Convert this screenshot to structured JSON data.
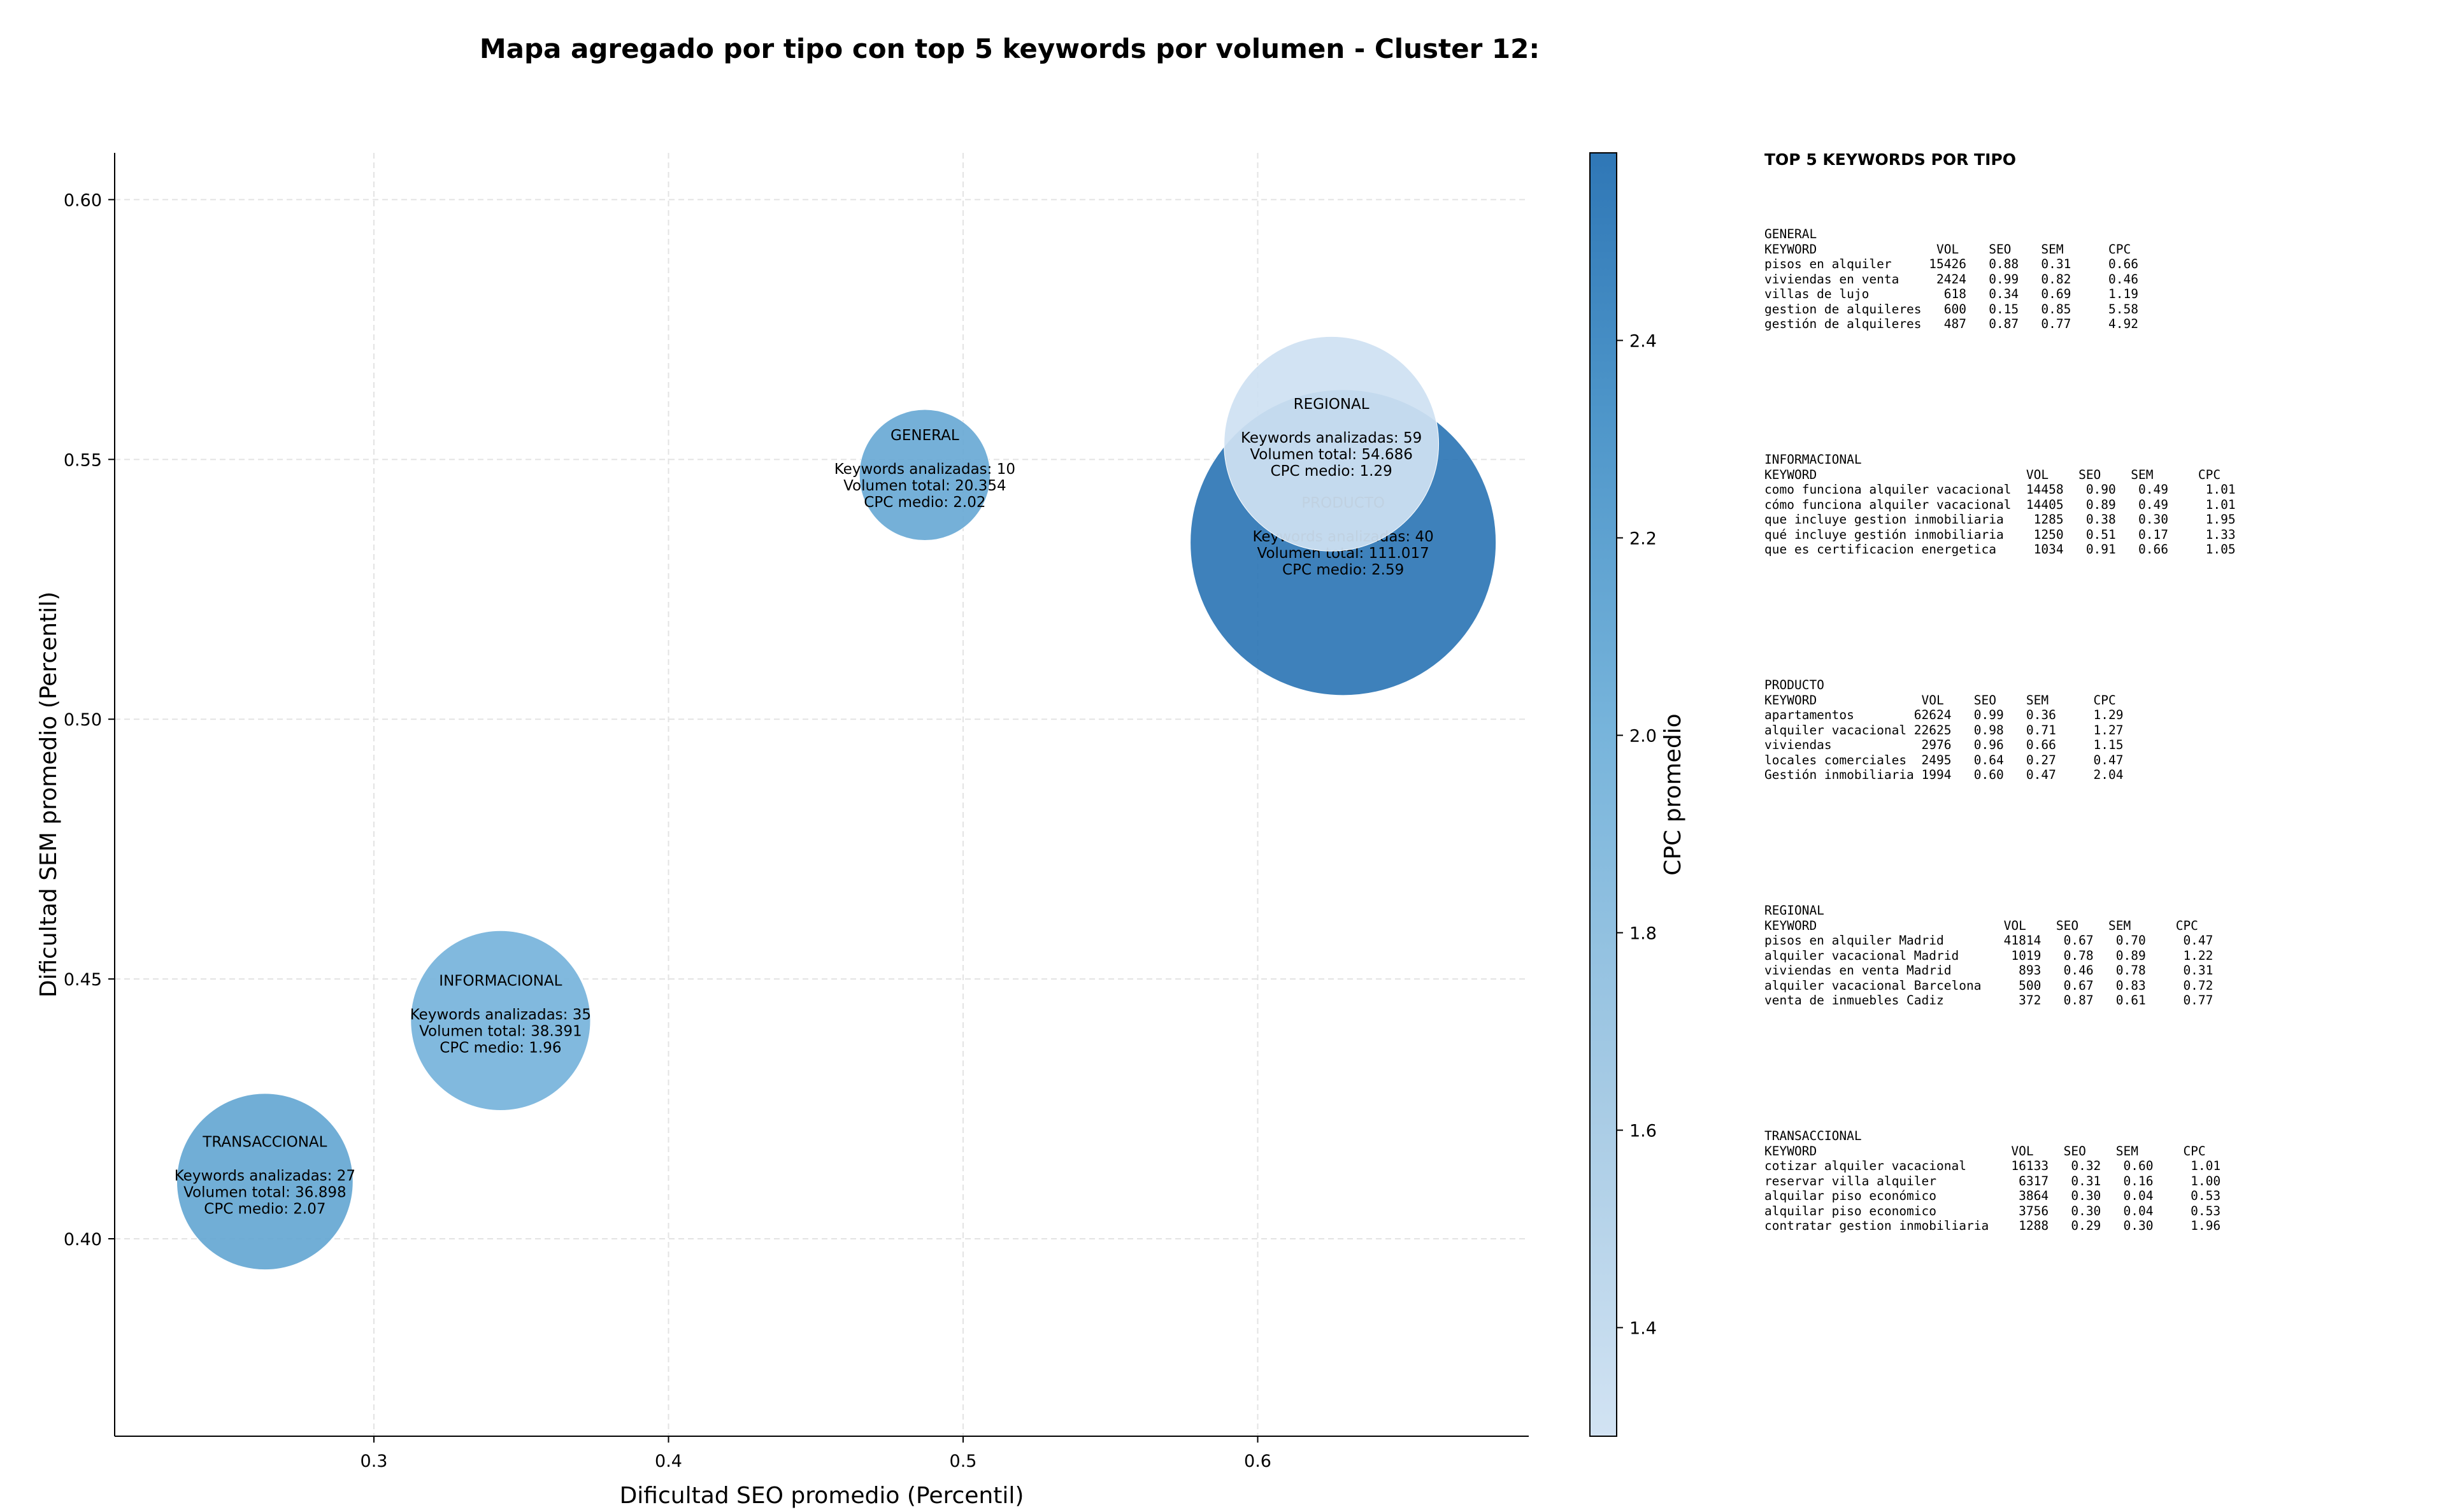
{
  "title": "Mapa agregado por tipo con top 5 keywords por volumen - Cluster 12:",
  "chart_data": {
    "type": "scatter",
    "title": "Mapa agregado por tipo con top 5 keywords por volumen - Cluster 12:",
    "xlabel": "Dificultad SEO promedio (Percentil)",
    "ylabel": "Dificultad SEM promedio (Percentil)",
    "xlim": [
      0.212,
      0.692
    ],
    "ylim": [
      0.362,
      0.609
    ],
    "xticks": [
      "0.3",
      "0.4",
      "0.5",
      "0.6"
    ],
    "yticks": [
      "0.40",
      "0.45",
      "0.50",
      "0.55",
      "0.60"
    ],
    "grid": true,
    "colorbar": {
      "label": "CPC promedio",
      "range": [
        1.29,
        2.59
      ],
      "ticks": [
        "1.4",
        "1.6",
        "1.8",
        "2.0",
        "2.2",
        "2.4"
      ]
    },
    "bubbles": [
      {
        "name": "GENERAL",
        "x": 0.487,
        "y": 0.547,
        "keywords_label": "Keywords analizadas: 10",
        "volume_label": "Volumen total: 20.354",
        "cpc_label": "CPC medio: 2.02",
        "volume": 20354,
        "cpc": 2.02,
        "color": "#6baad5"
      },
      {
        "name": "INFORMACIONAL",
        "x": 0.343,
        "y": 0.442,
        "keywords_label": "Keywords analizadas: 35",
        "volume_label": "Volumen total: 38.391",
        "cpc_label": "CPC medio: 1.96",
        "volume": 38391,
        "cpc": 1.96,
        "color": "#77b4db"
      },
      {
        "name": "TRANSACCIONAL",
        "x": 0.263,
        "y": 0.411,
        "keywords_label": "Keywords analizadas: 27",
        "volume_label": "Volumen total: 36.898",
        "cpc_label": "CPC medio: 2.07",
        "volume": 36898,
        "cpc": 2.07,
        "color": "#66a8d3"
      },
      {
        "name": "PRODUCTO",
        "x": 0.629,
        "y": 0.534,
        "keywords_label": "Keywords analizadas: 40",
        "volume_label": "Volumen total: 111.017",
        "cpc_label": "CPC medio: 2.59",
        "volume": 111017,
        "cpc": 2.59,
        "color": "#2f77b6"
      },
      {
        "name": "REGIONAL",
        "x": 0.625,
        "y": 0.553,
        "keywords_label": "Keywords analizadas: 59",
        "volume_label": "Volumen total: 54.686",
        "cpc_label": "CPC medio: 1.29",
        "volume": 54686,
        "cpc": 1.29,
        "color": "#cfe1f2"
      }
    ]
  },
  "tables": {
    "title": "TOP 5 KEYWORDS POR TIPO",
    "blocks": [
      {
        "name": "GENERAL",
        "lines": [
          "GENERAL",
          "KEYWORD                VOL    SEO    SEM      CPC",
          "pisos en alquiler     15426   0.88   0.31     0.66",
          "viviendas en venta     2424   0.99   0.82     0.46",
          "villas de lujo          618   0.34   0.69     1.19",
          "gestion de alquileres   600   0.15   0.85     5.58",
          "gestión de alquileres   487   0.87   0.77     4.92"
        ]
      },
      {
        "name": "INFORMACIONAL",
        "lines": [
          "INFORMACIONAL",
          "KEYWORD                            VOL    SEO    SEM      CPC",
          "como funciona alquiler vacacional  14458   0.90   0.49     1.01",
          "cómo funciona alquiler vacacional  14405   0.89   0.49     1.01",
          "que incluye gestion inmobiliaria    1285   0.38   0.30     1.95",
          "qué incluye gestión inmobiliaria    1250   0.51   0.17     1.33",
          "que es certificacion energetica     1034   0.91   0.66     1.05"
        ]
      },
      {
        "name": "PRODUCTO",
        "lines": [
          "PRODUCTO",
          "KEYWORD              VOL    SEO    SEM      CPC",
          "apartamentos        62624   0.99   0.36     1.29",
          "alquiler vacacional 22625   0.98   0.71     1.27",
          "viviendas            2976   0.96   0.66     1.15",
          "locales comerciales  2495   0.64   0.27     0.47",
          "Gestión inmobiliaria 1994   0.60   0.47     2.04"
        ]
      },
      {
        "name": "REGIONAL",
        "lines": [
          "REGIONAL",
          "KEYWORD                         VOL    SEO    SEM      CPC",
          "pisos en alquiler Madrid        41814   0.67   0.70     0.47",
          "alquiler vacacional Madrid       1019   0.78   0.89     1.22",
          "viviendas en venta Madrid         893   0.46   0.78     0.31",
          "alquiler vacacional Barcelona     500   0.67   0.83     0.72",
          "venta de inmuebles Cadiz          372   0.87   0.61     0.77"
        ]
      },
      {
        "name": "TRANSACCIONAL",
        "lines": [
          "TRANSACCIONAL",
          "KEYWORD                          VOL    SEO    SEM      CPC",
          "cotizar alquiler vacacional      16133   0.32   0.60     1.01",
          "reservar villa alquiler           6317   0.31   0.16     1.00",
          "alquilar piso económico           3864   0.30   0.04     0.53",
          "alquilar piso economico           3756   0.30   0.04     0.53",
          "contratar gestion inmobiliaria    1288   0.29   0.30     1.96"
        ]
      }
    ]
  }
}
